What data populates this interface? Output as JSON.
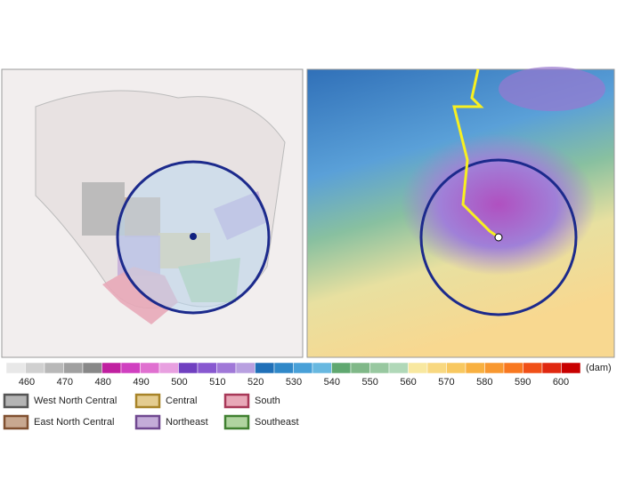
{
  "colorbar": {
    "ticks": [
      460,
      470,
      480,
      490,
      500,
      510,
      520,
      530,
      540,
      550,
      560,
      570,
      580,
      590,
      600
    ],
    "unit": "(dam)",
    "colors": [
      "#e8e8e8",
      "#d0d0d0",
      "#b8b8b8",
      "#a0a0a0",
      "#888888",
      "#c020a0",
      "#d040c0",
      "#e070d0",
      "#e8a0e0",
      "#7040c0",
      "#8858d0",
      "#a078d8",
      "#b8a0e0",
      "#2070b8",
      "#3088c8",
      "#48a0d8",
      "#68b8e0",
      "#60a870",
      "#80b888",
      "#98c8a0",
      "#b0d8b8",
      "#f8e8a0",
      "#f8d880",
      "#f8c860",
      "#f8b040",
      "#f89830",
      "#f87820",
      "#f05018",
      "#e02810",
      "#c80000"
    ]
  },
  "legend": [
    {
      "name": "West North Central",
      "fill": "#b4b4b4",
      "border": "#555555"
    },
    {
      "name": "Central",
      "fill": "#e4cc90",
      "border": "#a88428"
    },
    {
      "name": "South",
      "fill": "#e8a8b8",
      "border": "#a83858"
    },
    {
      "name": "East North Central",
      "fill": "#c8a890",
      "border": "#805030"
    },
    {
      "name": "Northeast",
      "fill": "#c4acd8",
      "border": "#704890"
    },
    {
      "name": "Southeast",
      "fill": "#b0d4a0",
      "border": "#408030"
    }
  ]
}
